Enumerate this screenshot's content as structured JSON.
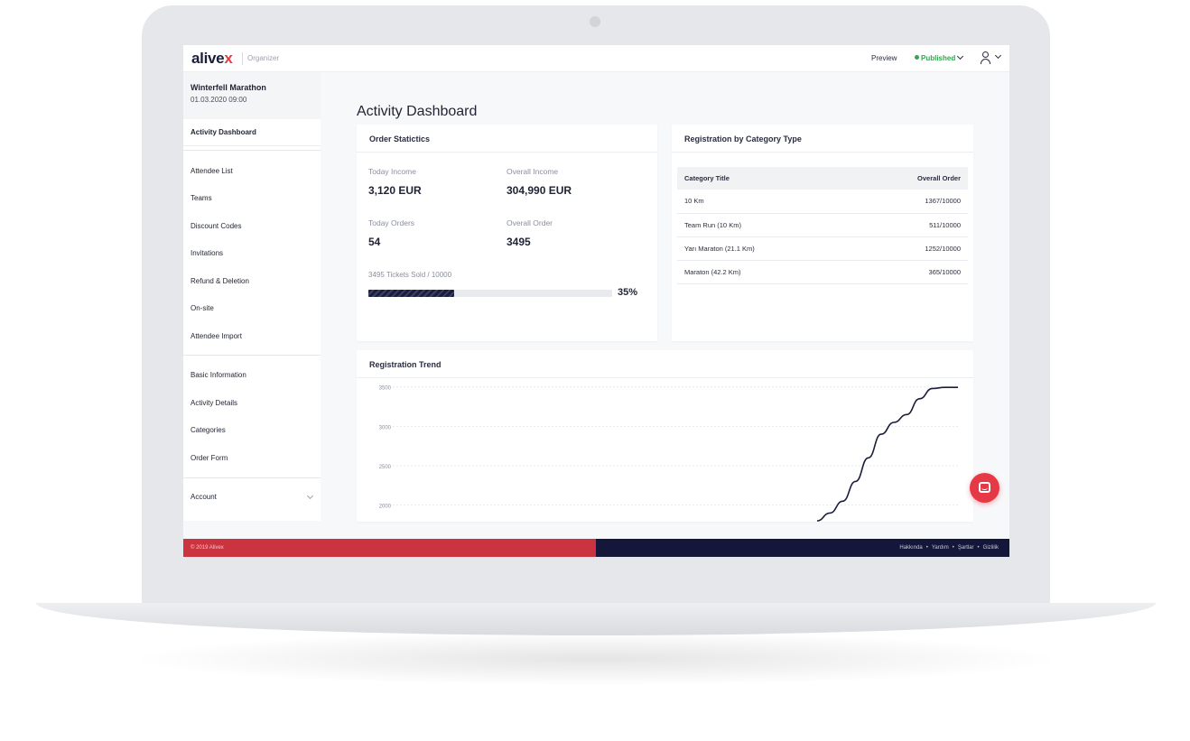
{
  "header": {
    "logo_main": "alive",
    "logo_accent": "x",
    "subtitle": "Organizer",
    "preview_label": "Preview",
    "status_label": "Published",
    "user_icon": "user-icon"
  },
  "sidebar": {
    "event_name": "Winterfell Marathon",
    "event_date": "01.03.2020 09:00",
    "active_item": "Activity Dashboard",
    "group1": [
      "Attendee List",
      "Teams",
      "Discount Codes",
      "Invitations",
      "Refund & Deletion",
      "On-site",
      "Attendee Import"
    ],
    "group2": [
      "Basic Information",
      "Activity Details",
      "Categories",
      "Order Form"
    ],
    "account_label": "Account"
  },
  "page": {
    "title": "Activity Dashboard"
  },
  "order_stats": {
    "title": "Order Statictics",
    "today_income_label": "Today Income",
    "today_income_value": "3,120 EUR",
    "overall_income_label": "Overall Income",
    "overall_income_value": "304,990 EUR",
    "today_orders_label": "Today Orders",
    "today_orders_value": "54",
    "overall_order_label": "Overall Order",
    "overall_order_value": "3495",
    "tickets_label": "3495 Tickets Sold / 10000",
    "progress_percent_label": "35%",
    "progress_fraction": 0.35
  },
  "category_table": {
    "title": "Registration by Category Type",
    "columns": [
      "Category Title",
      "Overall Order"
    ],
    "rows": [
      [
        "10 Km",
        "1367/10000"
      ],
      [
        "Team Run (10 Km)",
        "511/10000"
      ],
      [
        "Yarı Maraton (21.1 Km)",
        "1252/10000"
      ],
      [
        "Maraton (42.2 Km)",
        "365/10000"
      ]
    ]
  },
  "trend": {
    "title": "Registration Trend"
  },
  "chart_data": {
    "type": "line",
    "title": "Registration Trend",
    "xlabel": "",
    "ylabel": "",
    "y_ticks": [
      3500,
      3000,
      2500,
      2000
    ],
    "ylim": [
      1790,
      3600
    ],
    "grid": true,
    "series": [
      {
        "values": [
          1800,
          1900,
          2050,
          2300,
          2600,
          2900,
          3050,
          3150,
          3350,
          3480,
          3495,
          3495
        ]
      }
    ]
  },
  "footer": {
    "copyright": "© 2019 Alivex",
    "links": [
      "Hakkında",
      "Yardım",
      "Şartlar",
      "Gizlilik"
    ],
    "accent_red": "#cc3340",
    "accent_navy": "#14173a"
  },
  "chat_icon": "chat-icon"
}
